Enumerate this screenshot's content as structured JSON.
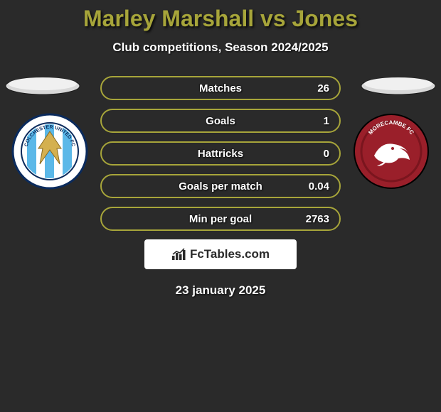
{
  "header": {
    "title_player1": "Marley Marshall",
    "title_vs": " vs ",
    "title_player2": "Jones",
    "subtitle": "Club competitions, Season 2024/2025",
    "title_color": "#a7a53a"
  },
  "avatars": {
    "placeholder_bg": "#d8d8d8",
    "shadow": "#1a1a1a"
  },
  "clubs": {
    "left": {
      "name": "Colchester United FC",
      "bg": "#ffffff",
      "ring": "#0a2a5c",
      "stripes": [
        "#5bb8e8",
        "#ffffff"
      ],
      "eagle": "#d4b050"
    },
    "right": {
      "name": "Morecambe FC",
      "bg": "#9a1f2a",
      "ring": "#7a151e",
      "shrimp": "#ffffff"
    }
  },
  "stats": {
    "border_color": "#a7a53a",
    "rows": [
      {
        "label": "Matches",
        "value": "26"
      },
      {
        "label": "Goals",
        "value": "1"
      },
      {
        "label": "Hattricks",
        "value": "0"
      },
      {
        "label": "Goals per match",
        "value": "0.04"
      },
      {
        "label": "Min per goal",
        "value": "2763"
      }
    ]
  },
  "branding": {
    "text": "FcTables.com",
    "bg": "#ffffff",
    "fg": "#2a2a2a"
  },
  "date": "23 january 2025"
}
